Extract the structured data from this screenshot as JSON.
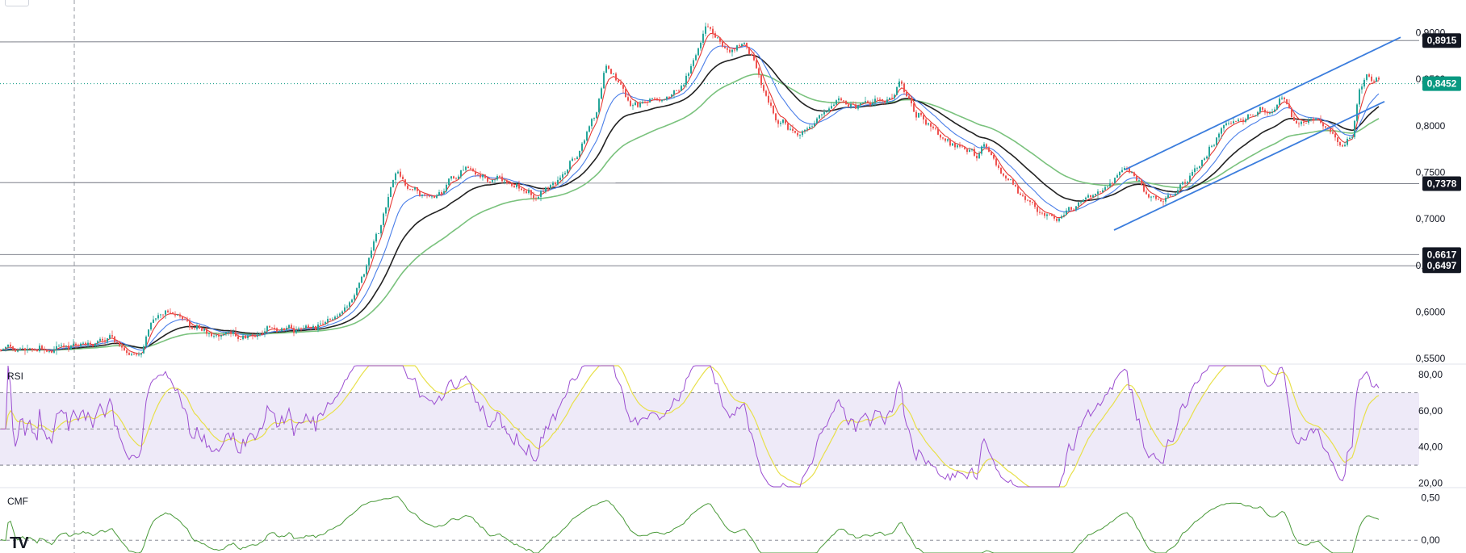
{
  "chart_data": [
    {
      "type": "candlestick",
      "pane": "price",
      "ylim": [
        0.545,
        0.935
      ],
      "y_ticks": [
        "0,5500",
        "0,6000",
        "0,6500",
        "0,7000",
        "0,7500",
        "0,8000",
        "0,8500",
        "0,9000"
      ],
      "y_tick_values": [
        0.55,
        0.6,
        0.65,
        0.7,
        0.75,
        0.8,
        0.85,
        0.9
      ],
      "close_path": [
        [
          0,
          0.56
        ],
        [
          40,
          0.558
        ],
        [
          90,
          0.563
        ],
        [
          120,
          0.568
        ],
        [
          140,
          0.572
        ],
        [
          160,
          0.548
        ],
        [
          175,
          0.56
        ],
        [
          190,
          0.59
        ],
        [
          210,
          0.6
        ],
        [
          230,
          0.59
        ],
        [
          250,
          0.578
        ],
        [
          270,
          0.575
        ],
        [
          300,
          0.575
        ],
        [
          320,
          0.578
        ],
        [
          340,
          0.583
        ],
        [
          370,
          0.582
        ],
        [
          390,
          0.582
        ],
        [
          410,
          0.59
        ],
        [
          430,
          0.605
        ],
        [
          450,
          0.64
        ],
        [
          470,
          0.69
        ],
        [
          490,
          0.755
        ],
        [
          505,
          0.735
        ],
        [
          520,
          0.725
        ],
        [
          540,
          0.72
        ],
        [
          560,
          0.74
        ],
        [
          580,
          0.755
        ],
        [
          600,
          0.745
        ],
        [
          620,
          0.742
        ],
        [
          640,
          0.735
        ],
        [
          660,
          0.725
        ],
        [
          680,
          0.735
        ],
        [
          700,
          0.75
        ],
        [
          720,
          0.78
        ],
        [
          740,
          0.82
        ],
        [
          750,
          0.87
        ],
        [
          765,
          0.85
        ],
        [
          780,
          0.82
        ],
        [
          800,
          0.822
        ],
        [
          820,
          0.83
        ],
        [
          840,
          0.84
        ],
        [
          860,
          0.87
        ],
        [
          875,
          0.91
        ],
        [
          890,
          0.895
        ],
        [
          905,
          0.88
        ],
        [
          920,
          0.89
        ],
        [
          935,
          0.87
        ],
        [
          945,
          0.838
        ],
        [
          960,
          0.81
        ],
        [
          975,
          0.8
        ],
        [
          990,
          0.79
        ],
        [
          1005,
          0.8
        ],
        [
          1020,
          0.815
        ],
        [
          1040,
          0.825
        ],
        [
          1060,
          0.822
        ],
        [
          1080,
          0.826
        ],
        [
          1100,
          0.825
        ],
        [
          1115,
          0.845
        ],
        [
          1130,
          0.82
        ],
        [
          1150,
          0.8
        ],
        [
          1170,
          0.785
        ],
        [
          1190,
          0.775
        ],
        [
          1210,
          0.768
        ],
        [
          1220,
          0.775
        ],
        [
          1230,
          0.765
        ],
        [
          1250,
          0.74
        ],
        [
          1270,
          0.72
        ],
        [
          1290,
          0.708
        ],
        [
          1305,
          0.7
        ],
        [
          1320,
          0.705
        ],
        [
          1340,
          0.72
        ],
        [
          1360,
          0.73
        ],
        [
          1380,
          0.745
        ],
        [
          1395,
          0.755
        ],
        [
          1410,
          0.74
        ],
        [
          1420,
          0.725
        ],
        [
          1430,
          0.72
        ],
        [
          1440,
          0.722
        ],
        [
          1460,
          0.73
        ],
        [
          1480,
          0.75
        ],
        [
          1500,
          0.775
        ],
        [
          1520,
          0.805
        ],
        [
          1540,
          0.81
        ],
        [
          1560,
          0.82
        ],
        [
          1575,
          0.815
        ],
        [
          1590,
          0.83
        ],
        [
          1605,
          0.8
        ],
        [
          1620,
          0.805
        ],
        [
          1640,
          0.805
        ],
        [
          1655,
          0.785
        ],
        [
          1665,
          0.78
        ],
        [
          1675,
          0.79
        ],
        [
          1685,
          0.84
        ],
        [
          1695,
          0.855
        ],
        [
          1700,
          0.845
        ],
        [
          1705,
          0.852
        ],
        [
          1710,
          0.848
        ]
      ],
      "candle_end_x": 1710,
      "moving_averages": [
        {
          "color": "#e53935",
          "period_like": 5
        },
        {
          "color": "#4a7ee8",
          "period_like": 14
        },
        {
          "color": "#222222",
          "period_like": 30
        },
        {
          "color": "#7ac27d",
          "period_like": 60
        }
      ],
      "horizontal_levels": [
        {
          "value": 0.8915,
          "label": "0,8915",
          "tag_color": "#131722",
          "x_span": [
            0.89,
            0.8915
          ]
        },
        {
          "value": 0.7378,
          "label": "0,7378",
          "tag_color": "#131722",
          "x_span": [
            0.739,
            0.7378
          ]
        },
        {
          "value": 0.6617,
          "label": "0,6617",
          "tag_color": "#131722",
          "x_span": [
            0.6617,
            0.6617
          ]
        },
        {
          "value": 0.6497,
          "label": "0,6497",
          "tag_color": "#131722",
          "x_span": [
            0.6497,
            0.6497
          ]
        }
      ],
      "last_price": {
        "value": 0.8452,
        "label": "0,8452",
        "tag_color": "#089981"
      },
      "channel_lines": [
        {
          "from": [
            1394,
            0.753
          ],
          "to": [
            1735,
            0.895
          ],
          "color": "#3b7ddd"
        },
        {
          "from": [
            1380,
            0.688
          ],
          "to": [
            1715,
            0.826
          ],
          "color": "#3b7ddd"
        }
      ],
      "vertical_marker_x": 92
    },
    {
      "type": "line",
      "pane": "RSI",
      "title": "RSI",
      "ylim": [
        18,
        85
      ],
      "y_ticks": [
        "20,00",
        "40,00",
        "60,00",
        "80,00"
      ],
      "y_tick_values": [
        20,
        40,
        60,
        80
      ],
      "band": [
        30,
        70
      ],
      "mid": 50,
      "series": [
        {
          "color": "#9c4fd1",
          "source": "close_path",
          "type": "rsi"
        },
        {
          "color": "#e8e04a",
          "source": "rsi",
          "type": "smoothed"
        }
      ]
    },
    {
      "type": "line",
      "pane": "CMF",
      "title": "CMF",
      "ylim": [
        -0.15,
        0.6
      ],
      "y_ticks": [
        "0,00",
        "0,50"
      ],
      "y_tick_values": [
        0,
        0.5
      ],
      "zero_line": 0,
      "series": [
        {
          "color": "#4a9a3a",
          "source": "close_path",
          "type": "cmf"
        }
      ]
    }
  ],
  "logo": "TV",
  "colors": {
    "up": "#26a69a",
    "down": "#ef5350",
    "rsi_band": "#eeeaf8",
    "axis_text": "#131722"
  }
}
